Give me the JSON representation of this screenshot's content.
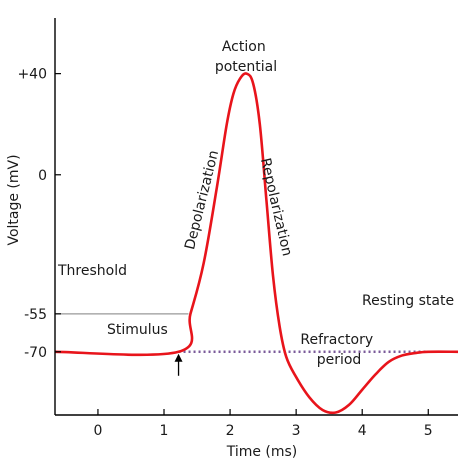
{
  "chart_data": {
    "type": "line",
    "title": "",
    "xlabel": "Time (ms)",
    "ylabel": "Voltage (mV)",
    "xlim": [
      -0.65,
      5.45
    ],
    "ylim": [
      -95,
      62
    ],
    "x_ticks": [
      0,
      1,
      2,
      3,
      4,
      5
    ],
    "y_ticks": [
      {
        "value": 40,
        "label": "+40"
      },
      {
        "value": 0,
        "label": "0"
      },
      {
        "value": -55,
        "label": "-55"
      },
      {
        "value": -70,
        "label": "-70"
      }
    ],
    "grid": false,
    "series": [
      {
        "color": "#e8141b",
        "style": "solid",
        "x": [
          -0.65,
          1.22,
          1.4,
          1.6,
          1.8,
          1.95,
          2.05,
          2.15,
          2.25,
          2.35,
          2.45,
          2.55,
          2.65,
          2.75,
          2.85,
          3.0,
          3.2,
          3.4,
          3.6,
          3.8,
          4.0,
          4.2,
          4.4,
          4.6,
          4.8,
          5.0,
          5.45
        ],
        "y": [
          -70,
          -70,
          -55,
          -35,
          -5,
          20,
          32,
          38,
          40,
          36,
          20,
          -10,
          -40,
          -60,
          -72,
          -80,
          -88,
          -93,
          -94,
          -91,
          -85,
          -79,
          -74,
          -71.5,
          -70.5,
          -70,
          -70
        ]
      },
      {
        "color": "#7a5a9a",
        "style": "dotted",
        "x": [
          1.22,
          5.45
        ],
        "y": [
          -70,
          -70
        ]
      }
    ],
    "threshold": {
      "value": -55,
      "label": "Threshold",
      "color": "#999999"
    },
    "annotations": {
      "action_potential": [
        "Action",
        "potential"
      ],
      "depolarization": "Depolarization",
      "repolarization": "Repolarization",
      "refractory_period": [
        "Refractory",
        "period"
      ],
      "resting_state": "Resting state",
      "stimulus": "Stimulus"
    },
    "stimulus_x": 1.22
  }
}
